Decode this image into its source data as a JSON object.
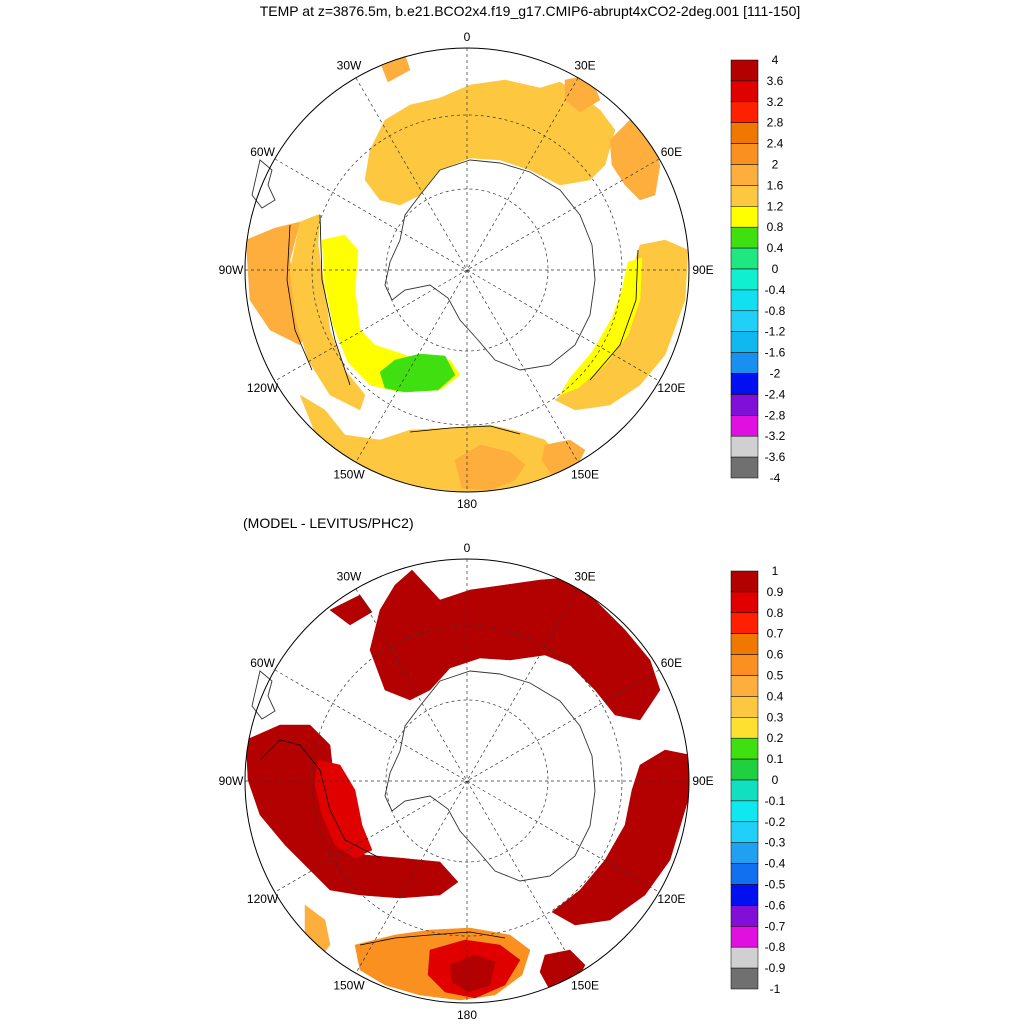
{
  "title": "TEMP at z=3876.5m, b.e21.BCO2x4.f19_g17.CMIP6-abrupt4xCO2-2deg.001 [111-150]",
  "subtitle": "(MODEL - LEVITUS/PHC2)",
  "panels": [
    {
      "name": "model-temperature",
      "lon_labels": [
        "0",
        "30E",
        "60E",
        "90E",
        "120E",
        "150E",
        "180",
        "150W",
        "120W",
        "90W",
        "60W",
        "30W"
      ],
      "colorbar": {
        "labels": [
          "4",
          "3.6",
          "3.2",
          "2.8",
          "2.4",
          "2",
          "1.6",
          "1.2",
          "0.8",
          "0.4",
          "0",
          "-0.4",
          "-0.8",
          "-1.2",
          "-1.6",
          "-2",
          "-2.4",
          "-2.8",
          "-3.2",
          "-3.6",
          "-4"
        ],
        "colors": [
          "#b30000",
          "#e00000",
          "#ff2000",
          "#f07800",
          "#fa9020",
          "#fdae3d",
          "#fdc840",
          "#ffff00",
          "#40e010",
          "#20e880",
          "#10f0d0",
          "#10e0f0",
          "#20d0f8",
          "#10b8f0",
          "#1890f0",
          "#0010f0",
          "#8010d8",
          "#e010e0",
          "#d0d0d0",
          "#707070"
        ],
        "fields": {
          "warm": "#fdae3d",
          "mid": "#fdc840",
          "yellow": "#ffff00",
          "green": "#40e010"
        }
      }
    },
    {
      "name": "model-minus-levitus",
      "lon_labels": [
        "0",
        "30E",
        "60E",
        "90E",
        "120E",
        "150E",
        "180",
        "150W",
        "120W",
        "90W",
        "60W",
        "30W"
      ],
      "colorbar": {
        "labels": [
          "1",
          "0.9",
          "0.8",
          "0.7",
          "0.6",
          "0.5",
          "0.4",
          "0.3",
          "0.2",
          "0.1",
          "0",
          "-0.1",
          "-0.2",
          "-0.3",
          "-0.4",
          "-0.5",
          "-0.6",
          "-0.7",
          "-0.8",
          "-0.9",
          "-1"
        ],
        "colors": [
          "#b30000",
          "#e00000",
          "#ff2000",
          "#f07800",
          "#fa9020",
          "#fdae3d",
          "#fdc840",
          "#fde030",
          "#40e010",
          "#20d040",
          "#10e0c0",
          "#10e8f0",
          "#20d0f8",
          "#20a0f0",
          "#1070f0",
          "#0010f0",
          "#8010d8",
          "#e010e0",
          "#d0d0d0",
          "#707070"
        ],
        "fields": {
          "dark": "#b30000",
          "red": "#e00000",
          "orange": "#fa9020",
          "mid": "#fdae3d"
        }
      }
    }
  ]
}
